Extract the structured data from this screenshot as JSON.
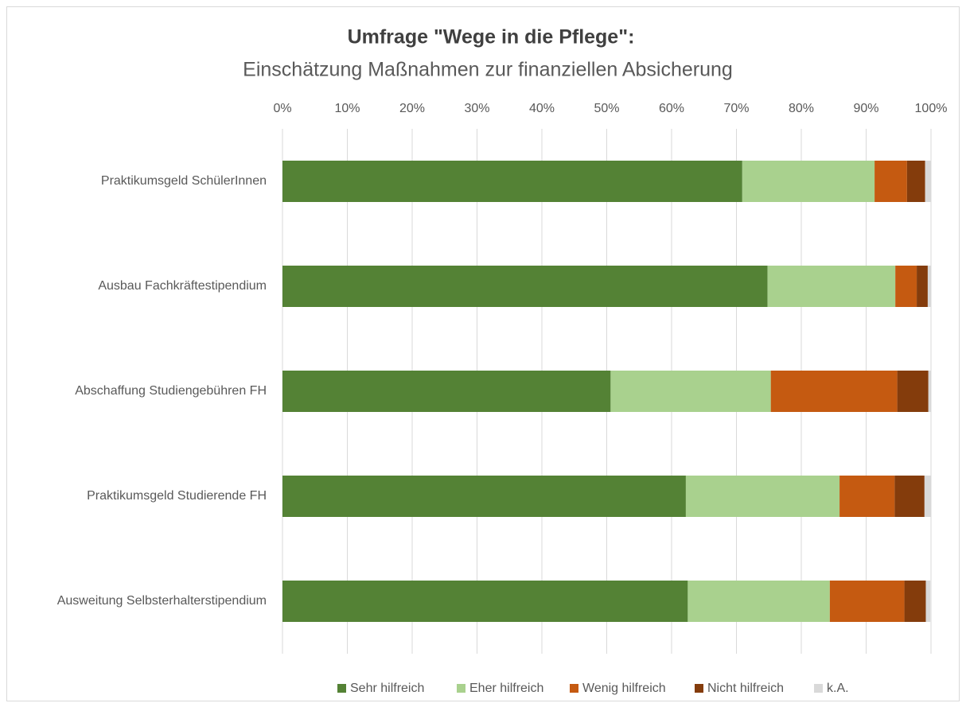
{
  "chart_data": {
    "type": "stacked-barh",
    "title": "Umfrage \"Wege in die Pflege\":",
    "subtitle": "Einschätzung Maßnahmen zur finanziellen Absicherung",
    "categories": [
      "Praktikumsgeld SchülerInnen",
      "Ausbau Fachkräftestipendium",
      "Abschaffung Studiengebühren FH",
      "Praktikumsgeld Studierende FH",
      "Ausweitung Selbsterhalterstipendium"
    ],
    "series": [
      {
        "name": "Sehr hilfreich",
        "color": "#548235",
        "values": [
          70.9,
          74.8,
          50.6,
          62.2,
          62.5
        ]
      },
      {
        "name": "Eher hilfreich",
        "color": "#a9d18e",
        "values": [
          20.4,
          19.7,
          24.7,
          23.7,
          21.9
        ]
      },
      {
        "name": "Wenig hilfreich",
        "color": "#c55a11",
        "values": [
          5.0,
          3.3,
          19.5,
          8.5,
          11.5
        ]
      },
      {
        "name": "Nicht hilfreich",
        "color": "#843c0c",
        "values": [
          2.8,
          1.7,
          4.8,
          4.6,
          3.3
        ]
      },
      {
        "name": "k.A.",
        "color": "#d9d9d9",
        "values": [
          0.9,
          0.5,
          0.4,
          1.0,
          0.7
        ]
      }
    ],
    "xlim": [
      0,
      100
    ],
    "xticks": [
      {
        "value": 0,
        "label": "0%"
      },
      {
        "value": 10,
        "label": "10%"
      },
      {
        "value": 20,
        "label": "20%"
      },
      {
        "value": 30,
        "label": "30%"
      },
      {
        "value": 40,
        "label": "40%"
      },
      {
        "value": 50,
        "label": "50%"
      },
      {
        "value": 60,
        "label": "60%"
      },
      {
        "value": 70,
        "label": "70%"
      },
      {
        "value": 80,
        "label": "80%"
      },
      {
        "value": 90,
        "label": "90%"
      },
      {
        "value": 100,
        "label": "100%"
      }
    ],
    "grid": true,
    "legend": "bottom"
  }
}
